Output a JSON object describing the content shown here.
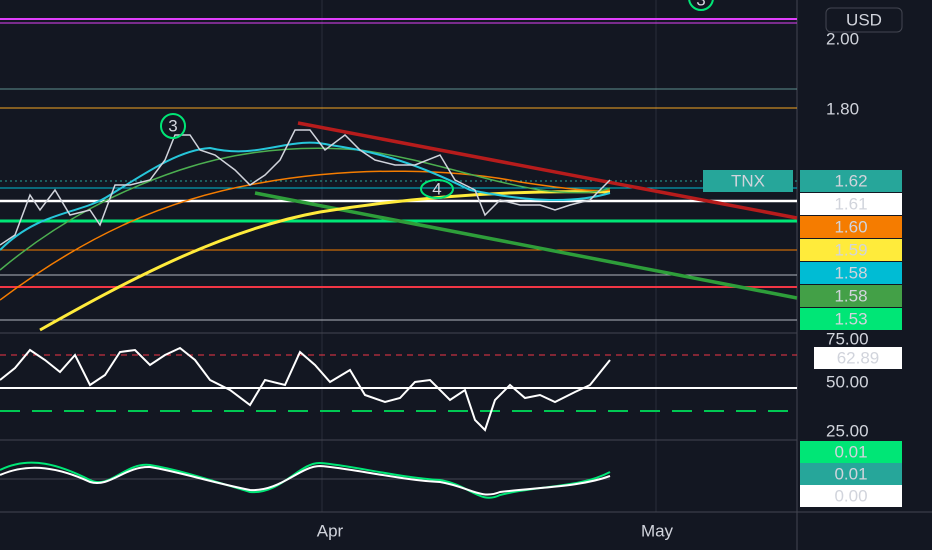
{
  "currency": "USD",
  "symbol": "TNX",
  "markers": [
    "3",
    "3",
    "4"
  ],
  "price_ticks": [
    "2.00",
    "1.80"
  ],
  "price_badges": [
    {
      "text": "1.62",
      "bg": "#26a69a",
      "fg": "#ffffff"
    },
    {
      "text": "1.61",
      "bg": "#ffffff",
      "fg": "#131722"
    },
    {
      "text": "1.60",
      "bg": "#f57c00",
      "fg": "#131722"
    },
    {
      "text": "1.59",
      "bg": "#ffeb3b",
      "fg": "#131722"
    },
    {
      "text": "1.58",
      "bg": "#00bcd4",
      "fg": "#131722"
    },
    {
      "text": "1.58",
      "bg": "#43a047",
      "fg": "#ffffff"
    },
    {
      "text": "1.53",
      "bg": "#00e676",
      "fg": "#131722"
    }
  ],
  "rsi_ticks": [
    "75.00",
    "50.00",
    "25.00"
  ],
  "rsi_badge": "62.89",
  "macd_badges": [
    {
      "text": "0.01",
      "bg": "#00e676",
      "fg": "#131722"
    },
    {
      "text": "0.01",
      "bg": "#26a69a",
      "fg": "#ffffff"
    },
    {
      "text": "0.00",
      "bg": "#ffffff",
      "fg": "#131722"
    }
  ],
  "time_labels": [
    "Apr",
    "May"
  ]
}
